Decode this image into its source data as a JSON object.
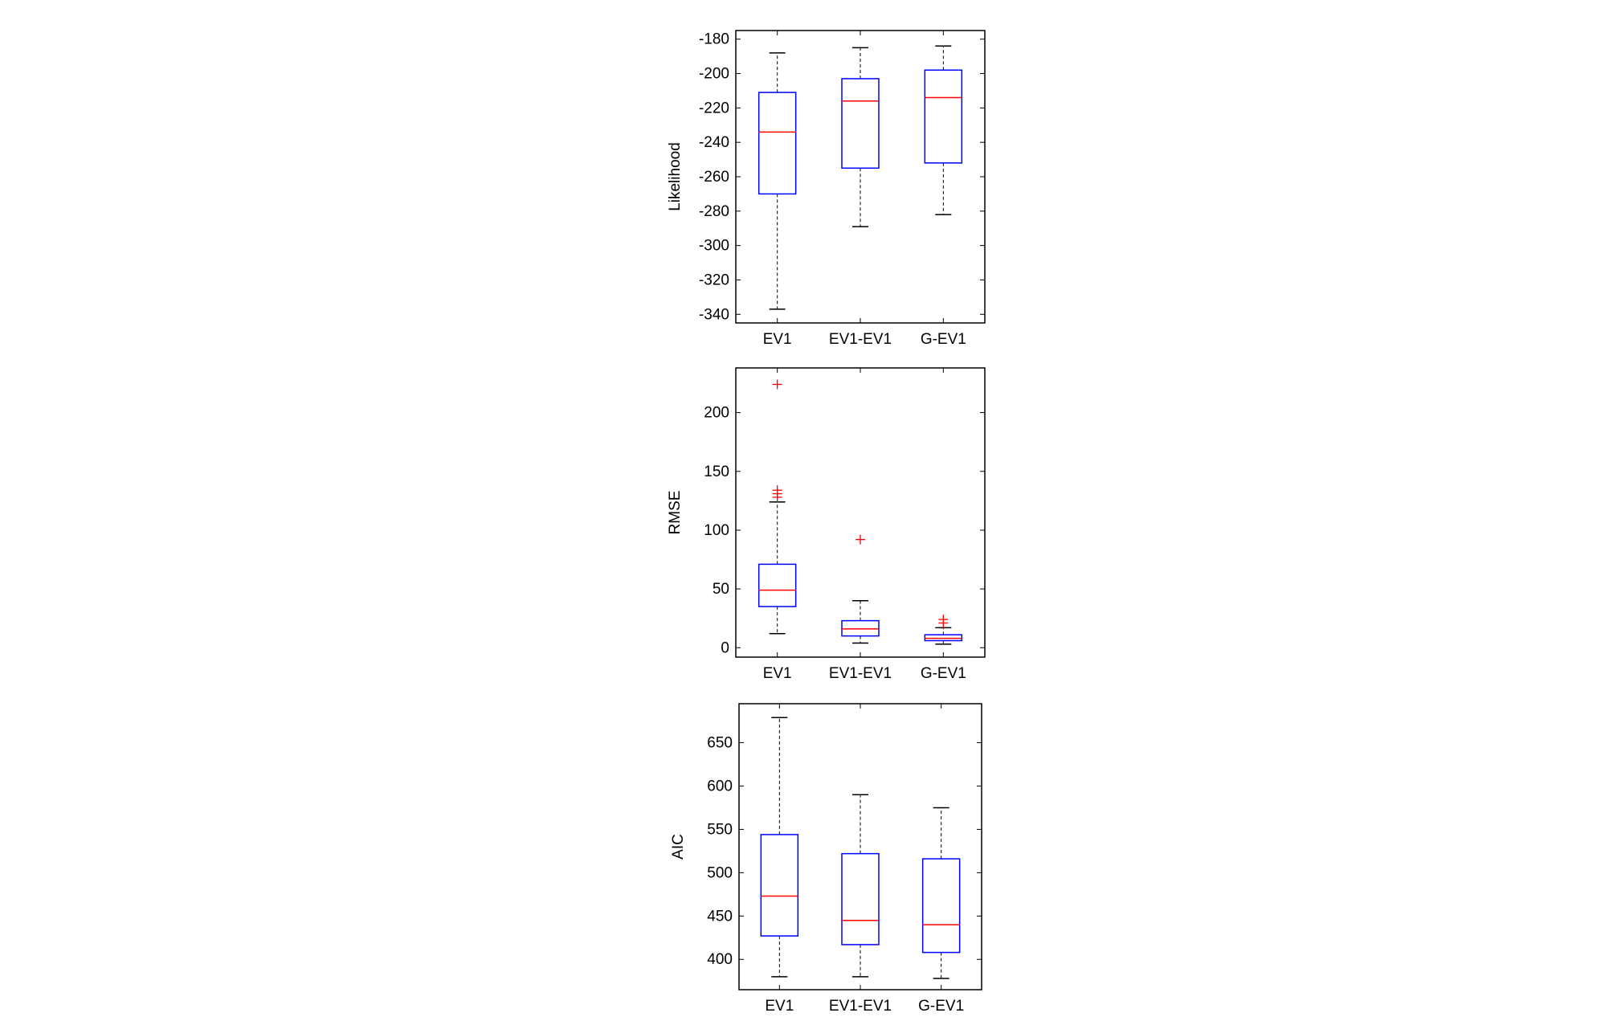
{
  "chart_data": [
    {
      "type": "box",
      "title": "",
      "xlabel": "",
      "ylabel": "Likelihood",
      "ylim": [
        -345,
        -175
      ],
      "yticks": [
        -180,
        -200,
        -220,
        -240,
        -260,
        -280,
        -300,
        -320,
        -340
      ],
      "ytick_labels": [
        "-180",
        "-200",
        "-220",
        "-240",
        "-260",
        "-280",
        "-300",
        "-320",
        "-340"
      ],
      "categories": [
        "EV1",
        "EV1-EV1",
        "G-EV1"
      ],
      "boxes": [
        {
          "whisker_low": -337,
          "q1": -270,
          "median": -234,
          "q3": -211,
          "whisker_high": -188,
          "outliers": []
        },
        {
          "whisker_low": -289,
          "q1": -255,
          "median": -216,
          "q3": -203,
          "whisker_high": -185,
          "outliers": []
        },
        {
          "whisker_low": -282,
          "q1": -252,
          "median": -214,
          "q3": -198,
          "whisker_high": -184,
          "outliers": []
        }
      ],
      "colors": {
        "box": "#0000ff",
        "median": "#ff0000",
        "whisker": "#000000",
        "outlier": "#ff0000"
      }
    },
    {
      "type": "box",
      "title": "",
      "xlabel": "",
      "ylabel": "RMSE",
      "ylim": [
        -8,
        238
      ],
      "yticks": [
        0,
        50,
        100,
        150,
        200
      ],
      "ytick_labels": [
        "0",
        "50",
        "100",
        "150",
        "200"
      ],
      "categories": [
        "EV1",
        "EV1-EV1",
        "G-EV1"
      ],
      "boxes": [
        {
          "whisker_low": 12,
          "q1": 35,
          "median": 49,
          "q3": 71,
          "whisker_high": 124,
          "outliers": [
            224,
            134,
            131,
            128
          ]
        },
        {
          "whisker_low": 4,
          "q1": 10,
          "median": 16,
          "q3": 23,
          "whisker_high": 40,
          "outliers": [
            92
          ]
        },
        {
          "whisker_low": 3,
          "q1": 6,
          "median": 8,
          "q3": 11,
          "whisker_high": 17,
          "outliers": [
            24,
            21
          ]
        }
      ],
      "colors": {
        "box": "#0000ff",
        "median": "#ff0000",
        "whisker": "#000000",
        "outlier": "#ff0000"
      }
    },
    {
      "type": "box",
      "title": "",
      "xlabel": "",
      "ylabel": "AIC",
      "ylim": [
        365,
        695
      ],
      "yticks": [
        400,
        450,
        500,
        550,
        600,
        650
      ],
      "ytick_labels": [
        "400",
        "450",
        "500",
        "550",
        "600",
        "650"
      ],
      "categories": [
        "EV1",
        "EV1-EV1",
        "G-EV1"
      ],
      "boxes": [
        {
          "whisker_low": 380,
          "q1": 427,
          "median": 473,
          "q3": 544,
          "whisker_high": 679,
          "outliers": []
        },
        {
          "whisker_low": 380,
          "q1": 417,
          "median": 445,
          "q3": 522,
          "whisker_high": 590,
          "outliers": []
        },
        {
          "whisker_low": 378,
          "q1": 408,
          "median": 440,
          "q3": 516,
          "whisker_high": 575,
          "outliers": []
        }
      ],
      "colors": {
        "box": "#0000ff",
        "median": "#ff0000",
        "whisker": "#000000",
        "outlier": "#ff0000"
      }
    }
  ]
}
